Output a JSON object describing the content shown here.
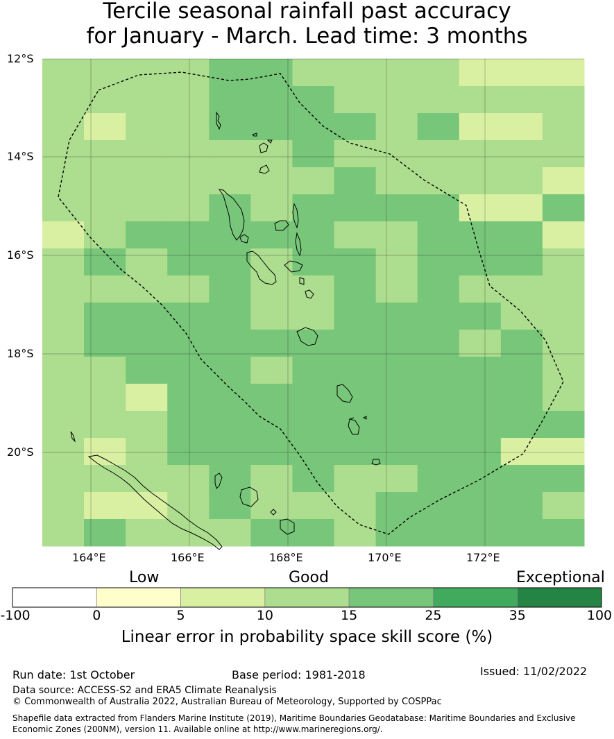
{
  "title_line1": "Tercile seasonal rainfall past accuracy",
  "title_line2": "for January - March. Lead time: 3 months",
  "map": {
    "lat_labels": [
      "12°S",
      "14°S",
      "16°S",
      "18°S",
      "20°S"
    ],
    "lon_labels": [
      "164°E",
      "166°E",
      "168°E",
      "170°E",
      "172°E"
    ],
    "grid_cols": 13,
    "grid_rows": 18,
    "grid_classes": [
      "3333443333222",
      "3333444333333",
      "3233444434223",
      "3333334333333",
      "3333333433332",
      "3333434444224",
      "2344444334442",
      "3434434434443",
      "3333433434333",
      "3444433444433",
      "3444444444343",
      "3344434444443",
      "3324444444443",
      "3334444444444",
      "3234444444422",
      "3333434334444",
      "3223433344443",
      "3433344344444"
    ],
    "colors": {
      "1": "#ffffcc",
      "2": "#d9f0a3",
      "3": "#addd8e",
      "4": "#78c679",
      "5": "#41ab5d",
      "6": "#238443"
    }
  },
  "colorbar": {
    "words": [
      "Low",
      "Good",
      "Exceptional"
    ],
    "ticks": [
      "-100",
      "0",
      "5",
      "10",
      "15",
      "25",
      "35",
      "100"
    ],
    "colors": [
      "#ffffff",
      "#ffffcc",
      "#d9f0a3",
      "#addd8e",
      "#78c679",
      "#41ab5d",
      "#238443"
    ],
    "label": "Linear error in probability space skill score (%)"
  },
  "footer": {
    "run_date": "Run date: 1st October",
    "base_period": "Base period: 1981-2018",
    "issued": "Issued: 11/02/2022",
    "data_source": "Data source: ACCESS-S2 and ERA5 Climate Reanalysis",
    "copyright": "© Commonwealth of Australia 2022, Australian Bureau of Meteorology, Supported by COSPPac",
    "shapefile_line1": "Shapefile data extracted from Flanders Marine Institute (2019), Maritime Boundaries Geodatabase: Maritime Boundaries and Exclusive",
    "shapefile_line2": "Economic Zones (200NM), version 11. Available online at http://www.marineregions.org/."
  }
}
